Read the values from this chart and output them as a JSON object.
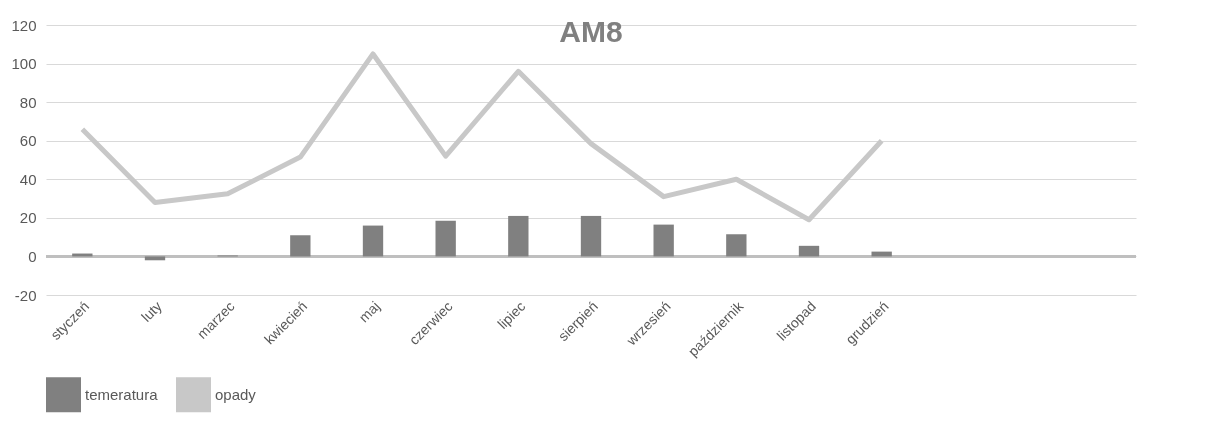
{
  "chart_data": {
    "type": "bar",
    "title": "AM8",
    "categories": [
      "styczeń",
      "luty",
      "marzec",
      "kwiecień",
      "maj",
      "czerwiec",
      "lipiec",
      "sierpień",
      "wrzesień",
      "październik",
      "listopad",
      "grudzień",
      null,
      null,
      null
    ],
    "series": [
      {
        "name": "temeratura",
        "color": "#808080",
        "values": [
          1.5,
          -2,
          0.5,
          11,
          16,
          18.5,
          21,
          21,
          16.5,
          11.5,
          5.5,
          2.5,
          null,
          null,
          null
        ]
      },
      {
        "name": "opady",
        "type": "line",
        "color": "#c8c8c8",
        "values": [
          66,
          28,
          32.5,
          51.5,
          105,
          52,
          96,
          58.5,
          31,
          40,
          19,
          60,
          null,
          null,
          null
        ]
      }
    ],
    "ylim": [
      -20,
      120
    ],
    "yticks": [
      -20,
      0,
      20,
      40,
      60,
      80,
      100,
      120
    ],
    "grid": "y",
    "legend": "bottom",
    "marker": "none",
    "line_style": "solid"
  }
}
